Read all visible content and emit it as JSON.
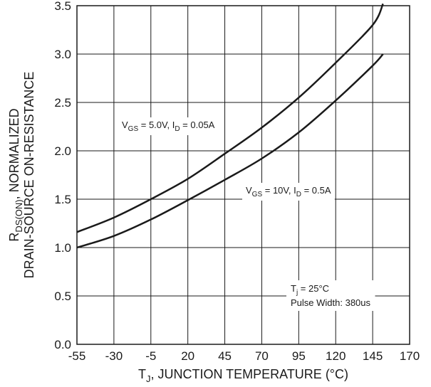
{
  "chart_data": {
    "type": "line",
    "xlabel_main": "T",
    "xlabel_sub": "J",
    "xlabel_rest": ", JUNCTION TEMPERATURE (°C)",
    "ylabel_line1_main": "R",
    "ylabel_line1_sub": "DS(ON)",
    "ylabel_line1_rest": ", NORMALIZED",
    "ylabel_line2": "DRAIN-SOURCE ON-RESISTANCE",
    "xlim": [
      -55,
      170
    ],
    "ylim": [
      0.0,
      3.5
    ],
    "x_ticks": [
      "-55",
      "-30",
      "-5",
      "20",
      "45",
      "70",
      "95",
      "120",
      "145",
      "170"
    ],
    "y_ticks": [
      "0.0",
      "0.5",
      "1.0",
      "1.5",
      "2.0",
      "2.5",
      "3.0",
      "3.5"
    ],
    "grid": true,
    "series": [
      {
        "label_parts": [
          "V",
          "GS",
          " = 5.0V, I",
          "D",
          " = 0.05A"
        ],
        "x": [
          -55,
          -30,
          -5,
          20,
          45,
          70,
          95,
          120,
          145,
          152
        ],
        "y": [
          1.16,
          1.31,
          1.5,
          1.71,
          1.97,
          2.24,
          2.55,
          2.91,
          3.3,
          3.52
        ]
      },
      {
        "label_parts": [
          "V",
          "GS",
          " = 10V, I",
          "D",
          " = 0.5A"
        ],
        "x": [
          -55,
          -30,
          -5,
          20,
          45,
          70,
          95,
          120,
          145,
          152
        ],
        "y": [
          1.0,
          1.12,
          1.29,
          1.49,
          1.7,
          1.92,
          2.19,
          2.52,
          2.88,
          3.0
        ]
      }
    ],
    "conditions": [
      "T",
      "j",
      " = 25°C",
      "Pulse Width: 380us"
    ]
  }
}
